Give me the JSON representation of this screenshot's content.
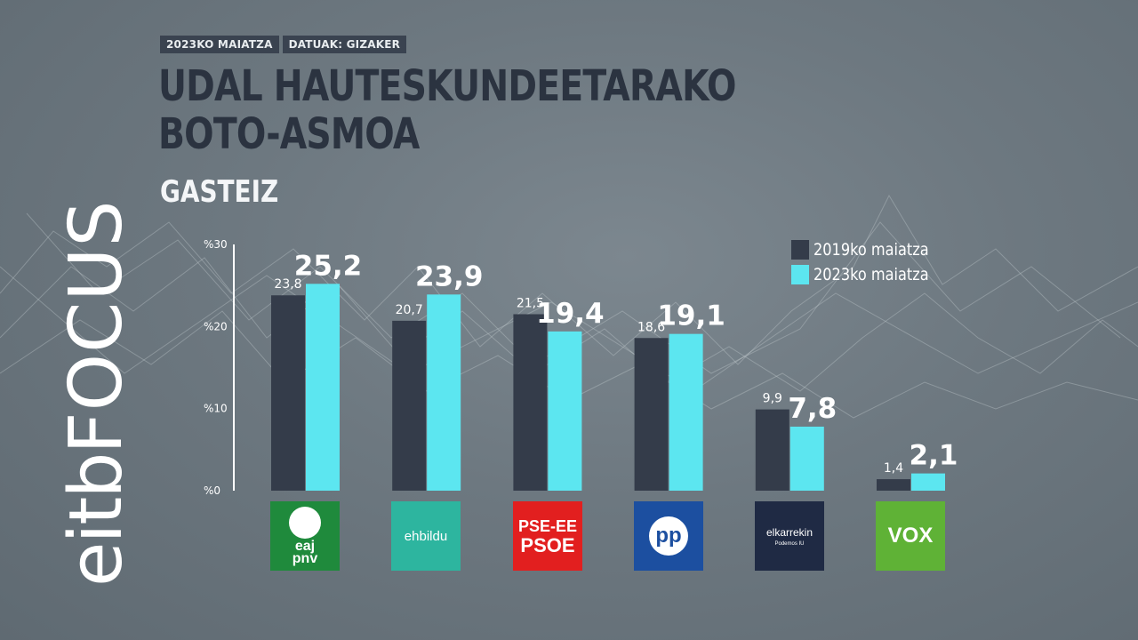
{
  "header": {
    "date_tag": "2023KO MAIATZA",
    "source_tag": "DATUAK: GIZAKER",
    "title_line1": "UDAL HAUTESKUNDEETARAKO",
    "title_line2": "BOTO-ASMOA",
    "location": "GASTEIZ"
  },
  "brand": {
    "part1": "eitb",
    "part2": "FOCUS"
  },
  "colors": {
    "series_2019": "#343c4a",
    "series_2023": "#5ce6f0",
    "axis": "#ffffff"
  },
  "chart_data": {
    "type": "bar",
    "title": "UDAL HAUTESKUNDEETARAKO BOTO-ASMOA",
    "subtitle": "GASTEIZ",
    "categories": [
      "EAJ-PNV",
      "EH Bildu",
      "PSE-EE PSOE",
      "PP",
      "Elkarrekin",
      "VOX"
    ],
    "series": [
      {
        "name": "2019ko maiatza",
        "values": [
          23.8,
          20.7,
          21.5,
          18.6,
          9.9,
          1.4
        ],
        "labels": [
          "23,8",
          "20,7",
          "21,5",
          "18,6",
          "9,9",
          "1,4"
        ]
      },
      {
        "name": "2023ko maiatza",
        "values": [
          25.2,
          23.9,
          19.4,
          19.1,
          7.8,
          2.1
        ],
        "labels": [
          "25,2",
          "23,9",
          "19,4",
          "19,1",
          "7,8",
          "2,1"
        ]
      }
    ],
    "yticks": [
      0,
      10,
      20,
      30
    ],
    "ytick_labels": [
      "%0",
      "%10",
      "%20",
      "%30"
    ],
    "ylim": [
      0,
      30
    ],
    "grid": false,
    "legend_position": "top-right"
  },
  "logos": {
    "pnv_line1": "eaj",
    "pnv_line2": "pnv",
    "bildu": "ehbildu",
    "psoe_line1": "PSE-EE",
    "psoe_line2": "PSOE",
    "pp": "pp",
    "elkarrekin": "elkarrekin",
    "elkarrekin_sub": "Podemos IU",
    "vox": "VOX"
  }
}
